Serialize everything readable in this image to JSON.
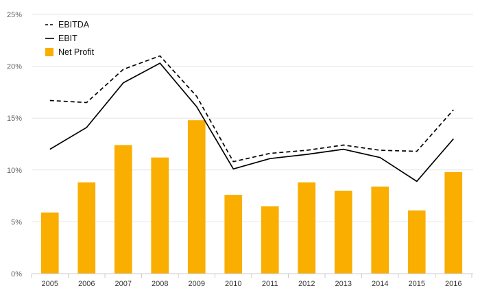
{
  "chart_data": {
    "type": "bar",
    "title": "",
    "xlabel": "",
    "ylabel": "",
    "categories": [
      "2005",
      "2006",
      "2007",
      "2008",
      "2009",
      "2010",
      "2011",
      "2012",
      "2013",
      "2014",
      "2015",
      "2016"
    ],
    "ylim": [
      0,
      25
    ],
    "yticks": [
      "0%",
      "5%",
      "10%",
      "15%",
      "20%",
      "25%"
    ],
    "yticks_values": [
      0,
      5,
      10,
      15,
      20,
      25
    ],
    "grid": true,
    "legend_position": "top-left",
    "series": [
      {
        "name": "EBITDA",
        "kind": "line",
        "style": "dashed",
        "color": "#000000",
        "values": [
          16.7,
          16.5,
          19.7,
          21.0,
          17.1,
          10.8,
          11.6,
          11.9,
          12.4,
          11.9,
          11.8,
          15.8
        ]
      },
      {
        "name": "EBIT",
        "kind": "line",
        "style": "solid",
        "color": "#000000",
        "values": [
          12.0,
          14.1,
          18.4,
          20.3,
          16.1,
          10.1,
          11.1,
          11.5,
          12.0,
          11.2,
          8.9,
          13.0
        ]
      },
      {
        "name": "Net Profit",
        "kind": "bar",
        "color": "#f9ae00",
        "values": [
          5.9,
          8.8,
          12.4,
          11.2,
          14.8,
          7.6,
          6.5,
          8.8,
          8.0,
          8.4,
          6.1,
          9.8
        ]
      }
    ]
  }
}
